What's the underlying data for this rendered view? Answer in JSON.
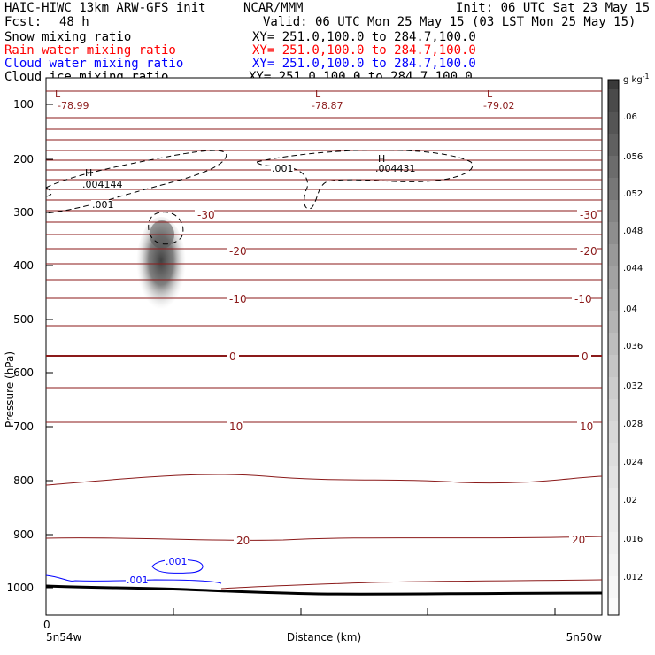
{
  "header": {
    "model": "HAIC-HIWC 13km ARW-GFS init",
    "center": "NCAR/MMM",
    "init": "Init: 06 UTC Sat 23 May 15",
    "fcst_label": "Fcst:",
    "fcst_value": "48 h",
    "valid": "Valid: 06 UTC Mon 25 May 15 (03 LST Mon 25 May 15)",
    "fields": [
      {
        "name": "Snow mixing ratio",
        "xy": "XY= 251.0,100.0 to 284.7,100.0",
        "color": "#000000"
      },
      {
        "name": "Rain water mixing ratio",
        "xy": "XY= 251.0,100.0 to 284.7,100.0",
        "color": "#ff0000"
      },
      {
        "name": "Cloud water mixing ratio",
        "xy": "XY= 251.0,100.0 to 284.7,100.0",
        "color": "#0000ff"
      },
      {
        "name": "Cloud ice mixing ratio",
        "xy": "XY= 251.0,100.0 to 284.7,100.0",
        "color": "#000000"
      }
    ]
  },
  "colors": {
    "temperature_contour": "#8b1a1a",
    "cloud_water_contour": "#0000ff",
    "cloud_ice_contour": "#000000",
    "terrain": "#000000"
  },
  "chart_data": {
    "type": "cross-section",
    "ylabel": "Pressure (hPa)",
    "xlabel": "Distance (km)",
    "y_scale": "log",
    "ylim": [
      1050,
      75
    ],
    "y_ticks": [
      100,
      200,
      300,
      400,
      500,
      600,
      700,
      800,
      900,
      1000
    ],
    "x_tick_label": "0",
    "x_left_label": "5n54w",
    "x_right_label": "5n50w",
    "colorbar": {
      "unit": "g kg",
      "unit_exp": "-1",
      "ticks": [
        ".012",
        ".016",
        ".02",
        ".024",
        ".028",
        ".032",
        ".036",
        ".04",
        ".044",
        ".048",
        ".052",
        ".056",
        ".06"
      ]
    },
    "temperature_contours": {
      "interval_c": 5,
      "labels": [
        {
          "value": "-30",
          "pressure": 323
        },
        {
          "value": "-20",
          "pressure": 396
        },
        {
          "value": "-10",
          "pressure": 475
        },
        {
          "value": "0",
          "pressure": 568
        },
        {
          "value": "10",
          "pressure": 700
        },
        {
          "value": "20",
          "pressure": 922
        }
      ],
      "minimum_labels": [
        {
          "type": "L",
          "value": "-78.99"
        },
        {
          "type": "L",
          "value": "-78.87"
        },
        {
          "type": "L",
          "value": "-79.02"
        }
      ]
    },
    "cloud_ice": {
      "contour": ".001",
      "maxima": [
        {
          "type": "H",
          "value": ".004144"
        },
        {
          "type": "H",
          "value": ".004431"
        }
      ],
      "extra_labels": [
        ".001"
      ]
    },
    "cloud_water": {
      "labels": [
        ".001",
        ".001"
      ]
    }
  }
}
